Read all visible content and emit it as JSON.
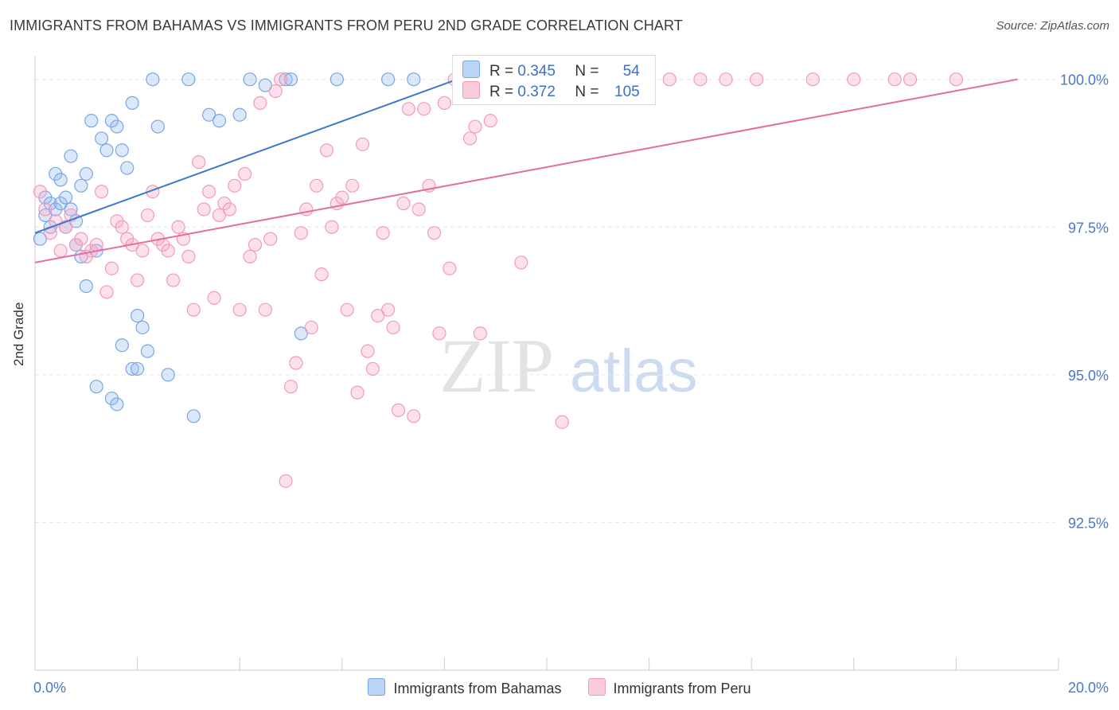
{
  "header": {
    "title": "IMMIGRANTS FROM BAHAMAS VS IMMIGRANTS FROM PERU 2ND GRADE CORRELATION CHART",
    "source": "Source: ZipAtlas.com"
  },
  "watermark": {
    "zip": "ZIP",
    "atlas": "atlas"
  },
  "legend": {
    "rows": [
      {
        "r_label": "R = ",
        "r_value": "0.345",
        "n_label": "N = ",
        "n_value": "54",
        "color": "#7aa6e6"
      },
      {
        "r_label": "R = ",
        "r_value": "0.372",
        "n_label": "N = ",
        "n_value": "105",
        "color": "#f39abb"
      }
    ]
  },
  "chart_data": {
    "type": "scatter",
    "title": "IMMIGRANTS FROM BAHAMAS VS IMMIGRANTS FROM PERU 2ND GRADE CORRELATION CHART",
    "xlabel": "",
    "ylabel": "2nd Grade",
    "xlim": [
      0,
      20
    ],
    "ylim": [
      90.0,
      100.4
    ],
    "x_tick_labels": [
      "0.0%",
      "20.0%"
    ],
    "y_ticks": [
      92.5,
      95.0,
      97.5,
      100.0
    ],
    "y_tick_labels": [
      "92.5%",
      "95.0%",
      "97.5%",
      "100.0%"
    ],
    "grid": true,
    "legend_position": "top-center",
    "series": [
      {
        "name": "Immigrants from Bahamas",
        "color": "#7aa6e6",
        "line_color": "#3a78d4",
        "trend": {
          "x": [
            0.0,
            9.2
          ],
          "y": [
            97.4,
            100.3
          ]
        },
        "points": [
          [
            0.1,
            97.3
          ],
          [
            0.2,
            98.0
          ],
          [
            0.2,
            97.7
          ],
          [
            0.3,
            97.9
          ],
          [
            0.3,
            97.5
          ],
          [
            0.4,
            98.4
          ],
          [
            0.4,
            97.8
          ],
          [
            0.5,
            98.3
          ],
          [
            0.5,
            97.9
          ],
          [
            0.6,
            98.0
          ],
          [
            0.6,
            97.5
          ],
          [
            0.7,
            98.7
          ],
          [
            0.7,
            97.8
          ],
          [
            0.8,
            97.6
          ],
          [
            0.8,
            97.2
          ],
          [
            0.9,
            98.2
          ],
          [
            0.9,
            97.0
          ],
          [
            1.0,
            96.5
          ],
          [
            1.0,
            98.4
          ],
          [
            1.1,
            99.3
          ],
          [
            1.2,
            97.1
          ],
          [
            1.3,
            99.0
          ],
          [
            1.4,
            98.8
          ],
          [
            1.5,
            99.3
          ],
          [
            1.6,
            99.2
          ],
          [
            1.7,
            98.8
          ],
          [
            1.8,
            98.5
          ],
          [
            1.9,
            99.6
          ],
          [
            2.0,
            96.0
          ],
          [
            2.1,
            95.8
          ],
          [
            1.2,
            94.8
          ],
          [
            1.5,
            94.6
          ],
          [
            1.6,
            94.5
          ],
          [
            1.7,
            95.5
          ],
          [
            1.9,
            95.1
          ],
          [
            2.0,
            95.1
          ],
          [
            2.2,
            95.4
          ],
          [
            2.3,
            100.0
          ],
          [
            2.4,
            99.2
          ],
          [
            2.6,
            95.0
          ],
          [
            3.0,
            100.0
          ],
          [
            3.1,
            94.3
          ],
          [
            3.4,
            99.4
          ],
          [
            3.6,
            99.3
          ],
          [
            4.0,
            99.4
          ],
          [
            4.2,
            100.0
          ],
          [
            4.5,
            99.9
          ],
          [
            4.9,
            100.0
          ],
          [
            5.0,
            100.0
          ],
          [
            5.2,
            95.7
          ],
          [
            5.9,
            100.0
          ],
          [
            6.9,
            100.0
          ],
          [
            7.4,
            100.0
          ],
          [
            8.3,
            100.0
          ]
        ]
      },
      {
        "name": "Immigrants from Peru",
        "color": "#f39abb",
        "line_color": "#e46e9a",
        "trend": {
          "x": [
            0.0,
            19.2
          ],
          "y": [
            96.9,
            100.0
          ]
        },
        "points": [
          [
            0.1,
            98.1
          ],
          [
            0.2,
            97.8
          ],
          [
            0.3,
            97.4
          ],
          [
            0.4,
            97.6
          ],
          [
            0.5,
            97.1
          ],
          [
            0.6,
            97.5
          ],
          [
            0.7,
            97.7
          ],
          [
            0.8,
            97.2
          ],
          [
            0.9,
            97.3
          ],
          [
            1.0,
            97.0
          ],
          [
            1.1,
            97.1
          ],
          [
            1.2,
            97.2
          ],
          [
            1.3,
            98.1
          ],
          [
            1.4,
            96.4
          ],
          [
            1.5,
            96.8
          ],
          [
            1.6,
            97.6
          ],
          [
            1.7,
            97.5
          ],
          [
            1.8,
            97.3
          ],
          [
            1.9,
            97.2
          ],
          [
            2.0,
            96.6
          ],
          [
            2.1,
            97.1
          ],
          [
            2.2,
            97.7
          ],
          [
            2.3,
            98.1
          ],
          [
            2.4,
            97.3
          ],
          [
            2.5,
            97.2
          ],
          [
            2.6,
            97.1
          ],
          [
            2.7,
            96.6
          ],
          [
            2.8,
            97.5
          ],
          [
            2.9,
            97.3
          ],
          [
            3.0,
            97.0
          ],
          [
            3.1,
            96.1
          ],
          [
            3.2,
            98.6
          ],
          [
            3.3,
            97.8
          ],
          [
            3.4,
            98.1
          ],
          [
            3.5,
            96.3
          ],
          [
            3.6,
            97.7
          ],
          [
            3.7,
            97.9
          ],
          [
            3.8,
            97.8
          ],
          [
            3.9,
            98.2
          ],
          [
            4.0,
            96.1
          ],
          [
            4.1,
            98.4
          ],
          [
            4.2,
            97.0
          ],
          [
            4.3,
            97.2
          ],
          [
            4.4,
            99.6
          ],
          [
            4.5,
            96.1
          ],
          [
            4.6,
            97.3
          ],
          [
            4.7,
            99.8
          ],
          [
            4.8,
            100.0
          ],
          [
            4.9,
            93.2
          ],
          [
            5.0,
            94.8
          ],
          [
            5.1,
            95.2
          ],
          [
            5.2,
            97.4
          ],
          [
            5.3,
            97.8
          ],
          [
            5.4,
            95.8
          ],
          [
            5.5,
            98.2
          ],
          [
            5.6,
            96.7
          ],
          [
            5.7,
            98.8
          ],
          [
            5.8,
            97.5
          ],
          [
            5.9,
            97.9
          ],
          [
            6.0,
            98.0
          ],
          [
            6.1,
            96.1
          ],
          [
            6.2,
            98.2
          ],
          [
            6.3,
            94.7
          ],
          [
            6.4,
            98.9
          ],
          [
            6.5,
            95.4
          ],
          [
            6.6,
            95.1
          ],
          [
            6.7,
            96.0
          ],
          [
            6.8,
            97.4
          ],
          [
            6.9,
            96.1
          ],
          [
            7.0,
            95.8
          ],
          [
            7.1,
            94.4
          ],
          [
            7.2,
            97.9
          ],
          [
            7.3,
            99.5
          ],
          [
            7.4,
            94.3
          ],
          [
            7.5,
            97.8
          ],
          [
            7.6,
            99.5
          ],
          [
            7.7,
            98.2
          ],
          [
            7.8,
            97.4
          ],
          [
            7.9,
            95.7
          ],
          [
            8.0,
            99.6
          ],
          [
            8.1,
            96.8
          ],
          [
            8.2,
            100.0
          ],
          [
            8.3,
            99.7
          ],
          [
            8.4,
            100.0
          ],
          [
            8.5,
            99.0
          ],
          [
            8.6,
            99.2
          ],
          [
            8.7,
            95.7
          ],
          [
            8.8,
            100.0
          ],
          [
            8.9,
            99.3
          ],
          [
            9.0,
            100.0
          ],
          [
            9.5,
            96.9
          ],
          [
            9.7,
            100.0
          ],
          [
            10.1,
            100.0
          ],
          [
            10.3,
            94.2
          ],
          [
            11.0,
            100.0
          ],
          [
            12.0,
            100.0
          ],
          [
            12.4,
            100.0
          ],
          [
            13.0,
            100.0
          ],
          [
            13.5,
            100.0
          ],
          [
            14.1,
            100.0
          ],
          [
            15.2,
            100.0
          ],
          [
            16.0,
            100.0
          ],
          [
            16.8,
            100.0
          ],
          [
            17.1,
            100.0
          ],
          [
            18.0,
            100.0
          ]
        ]
      }
    ]
  }
}
